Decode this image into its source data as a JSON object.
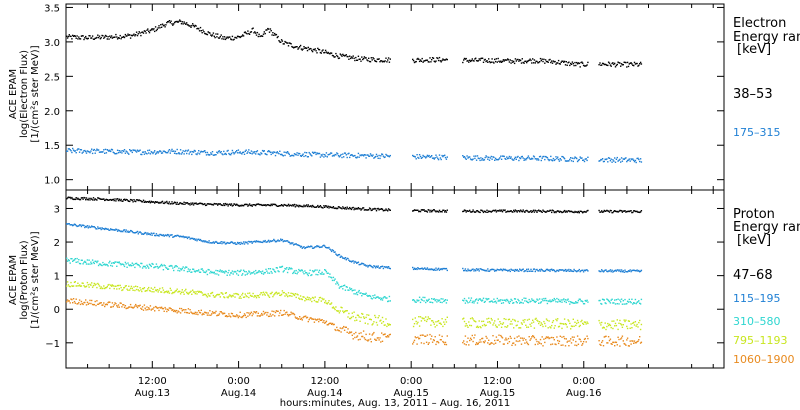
{
  "chart_data": [
    {
      "type": "scatter",
      "panel": "Electron",
      "ylabel": [
        "ACE EPAM",
        "log(Electron Flux)",
        "[1/(cm²s ster MeV)]"
      ],
      "ylim": [
        0.85,
        3.55
      ],
      "yticks": [
        "1.0",
        "1.5",
        "2.0",
        "2.5",
        "3.0",
        "3.5"
      ],
      "legend_title": [
        "Electron",
        "Energy ran",
        "[keV]"
      ],
      "series": [
        {
          "name": "38–53",
          "color": "#000000",
          "x": [
            0,
            3,
            6,
            9,
            12,
            14,
            16,
            18,
            20,
            22,
            24,
            26,
            27,
            28,
            30,
            32,
            35,
            38,
            41,
            44,
            47,
            50,
            53,
            56,
            59,
            62,
            65,
            68,
            71,
            74,
            77,
            80
          ],
          "y": [
            3.08,
            3.07,
            3.08,
            3.1,
            3.18,
            3.28,
            3.3,
            3.22,
            3.12,
            3.06,
            3.08,
            3.18,
            3.06,
            3.2,
            3.0,
            2.94,
            2.88,
            2.8,
            2.76,
            2.75,
            2.74,
            2.75,
            2.75,
            2.74,
            2.74,
            2.73,
            2.74,
            2.72,
            2.68,
            2.69,
            2.68,
            2.68
          ],
          "gaps": [
            [
              45,
              48
            ],
            [
              53,
              55
            ],
            [
              72.5,
              74
            ]
          ]
        },
        {
          "name": "175–315",
          "color": "#1e7fd4",
          "x": [
            0,
            5,
            10,
            15,
            20,
            25,
            30,
            35,
            40,
            45,
            50,
            55,
            60,
            65,
            70,
            75,
            80
          ],
          "y": [
            1.43,
            1.42,
            1.41,
            1.42,
            1.4,
            1.41,
            1.39,
            1.37,
            1.36,
            1.35,
            1.34,
            1.33,
            1.32,
            1.32,
            1.31,
            1.3,
            1.29
          ],
          "gaps": [
            [
              45,
              48
            ],
            [
              53,
              55
            ],
            [
              72.5,
              74
            ]
          ]
        }
      ]
    },
    {
      "type": "scatter",
      "panel": "Proton",
      "ylabel": [
        "ACE EPAM",
        "log(Proton Flux)",
        "[1/(cm²s ster MeV)]"
      ],
      "ylim": [
        -1.75,
        3.55
      ],
      "yticks": [
        "−1",
        "0",
        "1",
        "2",
        "3"
      ],
      "xlim": [
        0,
        91.5
      ],
      "xticks": [
        {
          "hour": 12,
          "label": "12:00",
          "sub": "Aug.13"
        },
        {
          "hour": 24,
          "label": "0:00",
          "sub": "Aug.14"
        },
        {
          "hour": 36,
          "label": "12:00",
          "sub": "Aug.14"
        },
        {
          "hour": 48,
          "label": "0:00",
          "sub": "Aug.15"
        },
        {
          "hour": 60,
          "label": "12:00",
          "sub": "Aug.15"
        },
        {
          "hour": 72,
          "label": "0:00",
          "sub": "Aug.16"
        }
      ],
      "xlabel": "hours:minutes, Aug. 13, 2011 – Aug. 16, 2011",
      "legend_title": [
        "Proton",
        "Energy ran",
        "[keV]"
      ],
      "series": [
        {
          "name": "47–68",
          "color": "#000000",
          "x": [
            0,
            5,
            10,
            15,
            20,
            25,
            30,
            35,
            40,
            45,
            50,
            55,
            60,
            65,
            70,
            75,
            80
          ],
          "y": [
            3.33,
            3.3,
            3.24,
            3.18,
            3.14,
            3.12,
            3.12,
            3.08,
            3.02,
            2.97,
            2.95,
            2.94,
            2.94,
            2.94,
            2.93,
            2.93,
            2.93
          ],
          "gaps": [
            [
              45,
              48
            ],
            [
              53,
              55
            ],
            [
              72.5,
              74
            ]
          ]
        },
        {
          "name": "115–195",
          "color": "#1e7fd4",
          "x": [
            0,
            4,
            8,
            12,
            16,
            20,
            24,
            28,
            30,
            33,
            36,
            38,
            40,
            42,
            45,
            50,
            55,
            60,
            65,
            70,
            75,
            80
          ],
          "y": [
            2.55,
            2.45,
            2.35,
            2.25,
            2.18,
            2.02,
            1.98,
            2.05,
            2.08,
            1.85,
            1.9,
            1.6,
            1.42,
            1.3,
            1.25,
            1.22,
            1.2,
            1.18,
            1.18,
            1.17,
            1.16,
            1.15
          ],
          "gaps": [
            [
              45,
              48
            ],
            [
              53,
              55
            ],
            [
              72.5,
              74
            ]
          ]
        },
        {
          "name": "310–580",
          "color": "#2ed6d0",
          "x": [
            0,
            4,
            8,
            12,
            16,
            20,
            24,
            28,
            30,
            33,
            36,
            38,
            40,
            42,
            45,
            50,
            55,
            60,
            65,
            70,
            75,
            80
          ],
          "y": [
            1.48,
            1.4,
            1.35,
            1.3,
            1.22,
            1.12,
            1.1,
            1.15,
            1.22,
            1.1,
            1.12,
            0.7,
            0.55,
            0.4,
            0.32,
            0.3,
            0.28,
            0.26,
            0.28,
            0.25,
            0.25,
            0.25
          ],
          "gaps": [
            [
              45,
              48
            ],
            [
              53,
              55
            ],
            [
              72.5,
              74
            ]
          ]
        },
        {
          "name": "795–1193",
          "color": "#c8e61e",
          "x": [
            0,
            4,
            8,
            12,
            16,
            20,
            24,
            28,
            30,
            33,
            36,
            38,
            40,
            42,
            45,
            50,
            55,
            60,
            65,
            70,
            75,
            80
          ],
          "y": [
            0.78,
            0.72,
            0.65,
            0.6,
            0.55,
            0.45,
            0.42,
            0.45,
            0.5,
            0.35,
            0.28,
            -0.05,
            -0.2,
            -0.3,
            -0.35,
            -0.35,
            -0.38,
            -0.4,
            -0.4,
            -0.42,
            -0.44,
            -0.45
          ],
          "gaps": [
            [
              45,
              48
            ],
            [
              53,
              55
            ],
            [
              72.5,
              74
            ]
          ]
        },
        {
          "name": "1060–1900",
          "color": "#e88a1e",
          "x": [
            0,
            4,
            8,
            12,
            16,
            20,
            24,
            28,
            30,
            33,
            36,
            38,
            40,
            42,
            45,
            50,
            55,
            60,
            65,
            70,
            75,
            80
          ],
          "y": [
            0.28,
            0.2,
            0.12,
            0.05,
            -0.02,
            -0.1,
            -0.15,
            -0.12,
            -0.08,
            -0.25,
            -0.35,
            -0.6,
            -0.72,
            -0.8,
            -0.85,
            -0.88,
            -0.9,
            -0.9,
            -0.92,
            -0.92,
            -0.93,
            -0.93
          ],
          "gaps": [
            [
              45,
              48
            ],
            [
              53,
              55
            ],
            [
              72.5,
              74
            ]
          ]
        }
      ]
    }
  ]
}
